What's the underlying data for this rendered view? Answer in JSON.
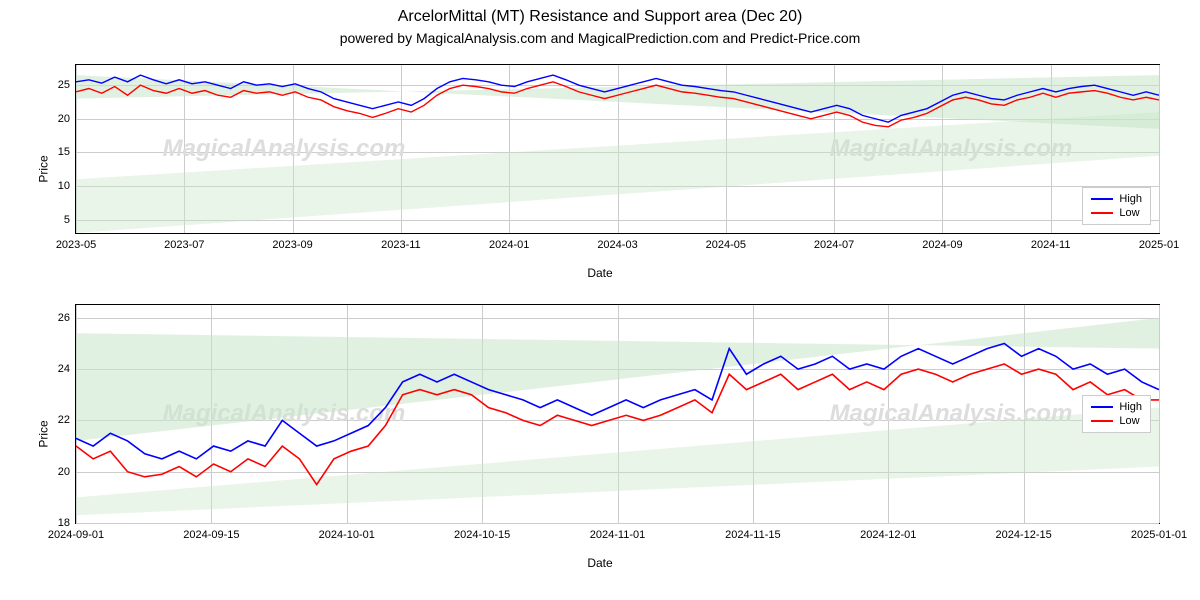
{
  "title": "ArcelorMittal (MT) Resistance and Support area (Dec 20)",
  "subtitle": "powered by MagicalAnalysis.com and MagicalPrediction.com and Predict-Price.com",
  "watermark_text": "MagicalAnalysis.com",
  "chart1": {
    "type": "line",
    "ylabel": "Price",
    "xlabel": "Date",
    "ylim": [
      3,
      28
    ],
    "yticks": [
      5,
      10,
      15,
      20,
      25
    ],
    "xticks": [
      "2023-05",
      "2023-07",
      "2023-09",
      "2023-11",
      "2024-01",
      "2024-03",
      "2024-05",
      "2024-07",
      "2024-09",
      "2024-11",
      "2025-01"
    ],
    "grid_color": "#cccccc",
    "background_color": "#ffffff",
    "bands": [
      {
        "color": "#c8e6c9",
        "opacity": 0.55,
        "poly": [
          [
            0,
            23
          ],
          [
            100,
            26.5
          ],
          [
            100,
            18.5
          ],
          [
            0,
            26.5
          ]
        ]
      },
      {
        "color": "#c8e6c9",
        "opacity": 0.4,
        "poly": [
          [
            0,
            11
          ],
          [
            100,
            21
          ],
          [
            100,
            14.5
          ],
          [
            0,
            3
          ]
        ]
      }
    ],
    "series": [
      {
        "name": "High",
        "color": "#0000ff",
        "width": 1.4,
        "y": [
          25.5,
          25.8,
          25.3,
          26.2,
          25.5,
          26.5,
          25.8,
          25.2,
          25.8,
          25.2,
          25.5,
          25.0,
          24.5,
          25.5,
          25.0,
          25.2,
          24.8,
          25.2,
          24.5,
          24.0,
          23.0,
          22.5,
          22.0,
          21.5,
          22.0,
          22.5,
          22.0,
          23.0,
          24.5,
          25.5,
          26.0,
          25.8,
          25.5,
          25.0,
          24.8,
          25.5,
          26.0,
          26.5,
          25.8,
          25.0,
          24.5,
          24.0,
          24.5,
          25.0,
          25.5,
          26.0,
          25.5,
          25.0,
          24.8,
          24.5,
          24.2,
          24.0,
          23.5,
          23.0,
          22.5,
          22.0,
          21.5,
          21.0,
          21.5,
          22.0,
          21.5,
          20.5,
          20.0,
          19.5,
          20.5,
          21.0,
          21.5,
          22.5,
          23.5,
          24.0,
          23.5,
          23.0,
          22.8,
          23.5,
          24.0,
          24.5,
          24.0,
          24.5,
          24.8,
          25.0,
          24.5,
          24.0,
          23.5,
          24.0,
          23.5
        ]
      },
      {
        "name": "Low",
        "color": "#ff0000",
        "width": 1.4,
        "y": [
          24.0,
          24.5,
          23.8,
          24.8,
          23.5,
          25.0,
          24.2,
          23.8,
          24.5,
          23.8,
          24.2,
          23.5,
          23.2,
          24.2,
          23.8,
          24.0,
          23.5,
          24.0,
          23.2,
          22.8,
          21.8,
          21.2,
          20.8,
          20.2,
          20.8,
          21.5,
          21.0,
          22.0,
          23.5,
          24.5,
          25.0,
          24.8,
          24.5,
          24.0,
          23.8,
          24.5,
          25.0,
          25.5,
          24.8,
          24.0,
          23.5,
          23.0,
          23.5,
          24.0,
          24.5,
          25.0,
          24.5,
          24.0,
          23.8,
          23.5,
          23.2,
          23.0,
          22.5,
          22.0,
          21.5,
          21.0,
          20.5,
          20.0,
          20.5,
          21.0,
          20.5,
          19.5,
          19.0,
          18.8,
          19.8,
          20.2,
          20.8,
          21.8,
          22.8,
          23.2,
          22.8,
          22.2,
          22.0,
          22.8,
          23.2,
          23.8,
          23.2,
          23.8,
          24.0,
          24.2,
          23.8,
          23.2,
          22.8,
          23.2,
          22.8
        ]
      }
    ],
    "legend": {
      "position": "lower right",
      "items": [
        "High",
        "Low"
      ]
    }
  },
  "chart2": {
    "type": "line",
    "ylabel": "Price",
    "xlabel": "Date",
    "ylim": [
      18,
      26.5
    ],
    "yticks": [
      18,
      20,
      22,
      24,
      26
    ],
    "xticks": [
      "2024-09-01",
      "2024-09-15",
      "2024-10-01",
      "2024-10-15",
      "2024-11-01",
      "2024-11-15",
      "2024-12-01",
      "2024-12-15",
      "2025-01-01"
    ],
    "grid_color": "#cccccc",
    "background_color": "#ffffff",
    "bands": [
      {
        "color": "#c8e6c9",
        "opacity": 0.55,
        "poly": [
          [
            0,
            21.2
          ],
          [
            100,
            26.0
          ],
          [
            100,
            24.8
          ],
          [
            0,
            25.4
          ]
        ]
      },
      {
        "color": "#c8e6c9",
        "opacity": 0.4,
        "poly": [
          [
            0,
            19.0
          ],
          [
            100,
            22.5
          ],
          [
            100,
            20.2
          ],
          [
            0,
            18.3
          ]
        ]
      }
    ],
    "series": [
      {
        "name": "High",
        "color": "#0000ff",
        "width": 1.6,
        "y": [
          21.3,
          21.0,
          21.5,
          21.2,
          20.7,
          20.5,
          20.8,
          20.5,
          21.0,
          20.8,
          21.2,
          21.0,
          22.0,
          21.5,
          21.0,
          21.2,
          21.5,
          21.8,
          22.5,
          23.5,
          23.8,
          23.5,
          23.8,
          23.5,
          23.2,
          23.0,
          22.8,
          22.5,
          22.8,
          22.5,
          22.2,
          22.5,
          22.8,
          22.5,
          22.8,
          23.0,
          23.2,
          22.8,
          24.8,
          23.8,
          24.2,
          24.5,
          24.0,
          24.2,
          24.5,
          24.0,
          24.2,
          24.0,
          24.5,
          24.8,
          24.5,
          24.2,
          24.5,
          24.8,
          25.0,
          24.5,
          24.8,
          24.5,
          24.0,
          24.2,
          23.8,
          24.0,
          23.5,
          23.2
        ]
      },
      {
        "name": "Low",
        "color": "#ff0000",
        "width": 1.6,
        "y": [
          21.0,
          20.5,
          20.8,
          20.0,
          19.8,
          19.9,
          20.2,
          19.8,
          20.3,
          20.0,
          20.5,
          20.2,
          21.0,
          20.5,
          19.5,
          20.5,
          20.8,
          21.0,
          21.8,
          23.0,
          23.2,
          23.0,
          23.2,
          23.0,
          22.5,
          22.3,
          22.0,
          21.8,
          22.2,
          22.0,
          21.8,
          22.0,
          22.2,
          22.0,
          22.2,
          22.5,
          22.8,
          22.3,
          23.8,
          23.2,
          23.5,
          23.8,
          23.2,
          23.5,
          23.8,
          23.2,
          23.5,
          23.2,
          23.8,
          24.0,
          23.8,
          23.5,
          23.8,
          24.0,
          24.2,
          23.8,
          24.0,
          23.8,
          23.2,
          23.5,
          23.0,
          23.2,
          22.8,
          22.8
        ]
      }
    ],
    "legend": {
      "position": "right",
      "items": [
        "High",
        "Low"
      ]
    }
  },
  "colors": {
    "high": "#0000ff",
    "low": "#ff0000",
    "band": "#c8e6c9",
    "grid": "#cccccc",
    "background": "#ffffff",
    "text": "#000000",
    "watermark": "#dddddd"
  },
  "typography": {
    "title_fontsize": 16,
    "subtitle_fontsize": 14,
    "label_fontsize": 12,
    "tick_fontsize": 11,
    "legend_fontsize": 11,
    "watermark_fontsize": 24
  }
}
